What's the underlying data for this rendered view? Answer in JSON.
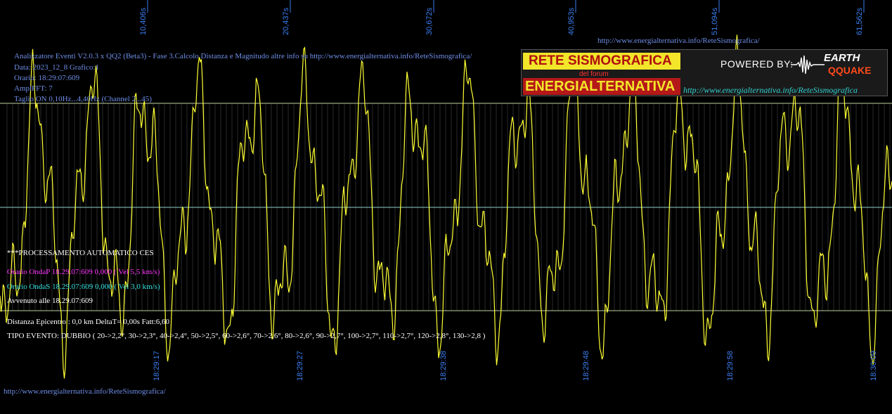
{
  "chart_data": {
    "type": "line",
    "title": "",
    "xlabel": "",
    "ylabel": "",
    "grid": true,
    "series_color": "#ffff33",
    "top_ticks": [
      "10,406s",
      "20,437s",
      "30,672s",
      "40,953s",
      "51,094s",
      "61,562s"
    ],
    "bottom_ticks": [
      "18:29:17",
      "18:29:27",
      "18:29:38",
      "18:29:48",
      "18:29:58",
      "18:30:09"
    ]
  },
  "header_url": "http://www.energialternativa.info/ReteSismografica/",
  "info": {
    "line1": "Analizzatore Eventi V2.0.3 x QQ2 (Beta3) - Fase 3.Calcolo Distanza e Magnitudo altre info su http://www.energialternativa.info/ReteSismografica/",
    "line2": "Data: 2023_12_8 Grafico:1",
    "line3": "Orario: 18:29:07:609",
    "line4": "AmplFFT: 7",
    "line5": "Taglio ON 0,10Hz...4,40Hz       (Channel 2...45)"
  },
  "process": {
    "title": "***PROCESSAMENTO AUTOMATICO CES",
    "onda_p": "Orario OndaP 18.29.07:609  0,000 ( Vel 5,5 km/s)",
    "onda_s": "Orario OndaS 18.29.07:609  0,000 ( Vel 3,0 km/s)",
    "avvenuto": "Avvenuto alle 18.29.07:609",
    "distanza": "Distanza Epicentro : 0,0 km DeltaT= 0,00s   Fatt:6,60",
    "tipo": "TIPO EVENTO: DUBBIO ( 20->2,2°, 30->2,3°, 40->2,4°, 50->2,5°, 60->2,6°, 70->2,6°, 80->2,6°, 90->2,7°, 100->2,7°, 110->2,7°, 120->2,8°, 130->2,8 )"
  },
  "footer_url": "http://www.energialternativa.info/ReteSismografica/",
  "banner": {
    "rete": "RETE SISMOGRAFICA",
    "del_forum": "del forum",
    "energia": "ENERGIALTERNATIVA",
    "powered": "POWERED BY:",
    "earth": "EARTH",
    "qquake": "QQUAKE",
    "url": "http://www.energialternativa.info/ReteSismografica"
  }
}
